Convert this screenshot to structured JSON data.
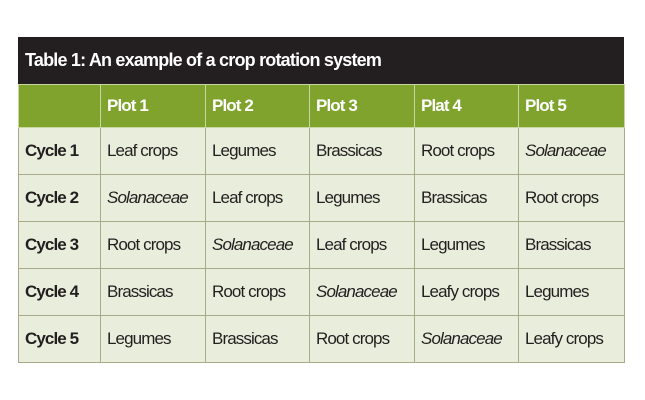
{
  "table": {
    "title": "Table 1: An example of a crop rotation system",
    "columns": [
      "",
      "Plot 1",
      "Plot 2",
      "Plot 3",
      "Plat 4",
      "Plot 5"
    ],
    "rows": [
      {
        "label": "Cycle 1",
        "cells": [
          "Leaf crops",
          "Legumes",
          "Brassicas",
          "Root crops",
          "Solanaceae"
        ]
      },
      {
        "label": "Cycle 2",
        "cells": [
          "Solanaceae",
          "Leaf crops",
          "Legumes",
          "Brassicas",
          "Root crops"
        ]
      },
      {
        "label": "Cycle 3",
        "cells": [
          "Root crops",
          "Solanaceae",
          "Leaf crops",
          "Legumes",
          "Brassicas"
        ]
      },
      {
        "label": "Cycle 4",
        "cells": [
          "Brassicas",
          "Root crops",
          "Solanaceae",
          "Leafy crops",
          "Legumes"
        ]
      },
      {
        "label": "Cycle 5",
        "cells": [
          "Legumes",
          "Brassicas",
          "Root crops",
          "Solanaceae",
          "Leafy crops"
        ]
      }
    ],
    "italic_term": "Solanaceae",
    "colors": {
      "title_bar": "#231f20",
      "header_row": "#7fa32d",
      "body_cells": "#e8eedb"
    }
  }
}
